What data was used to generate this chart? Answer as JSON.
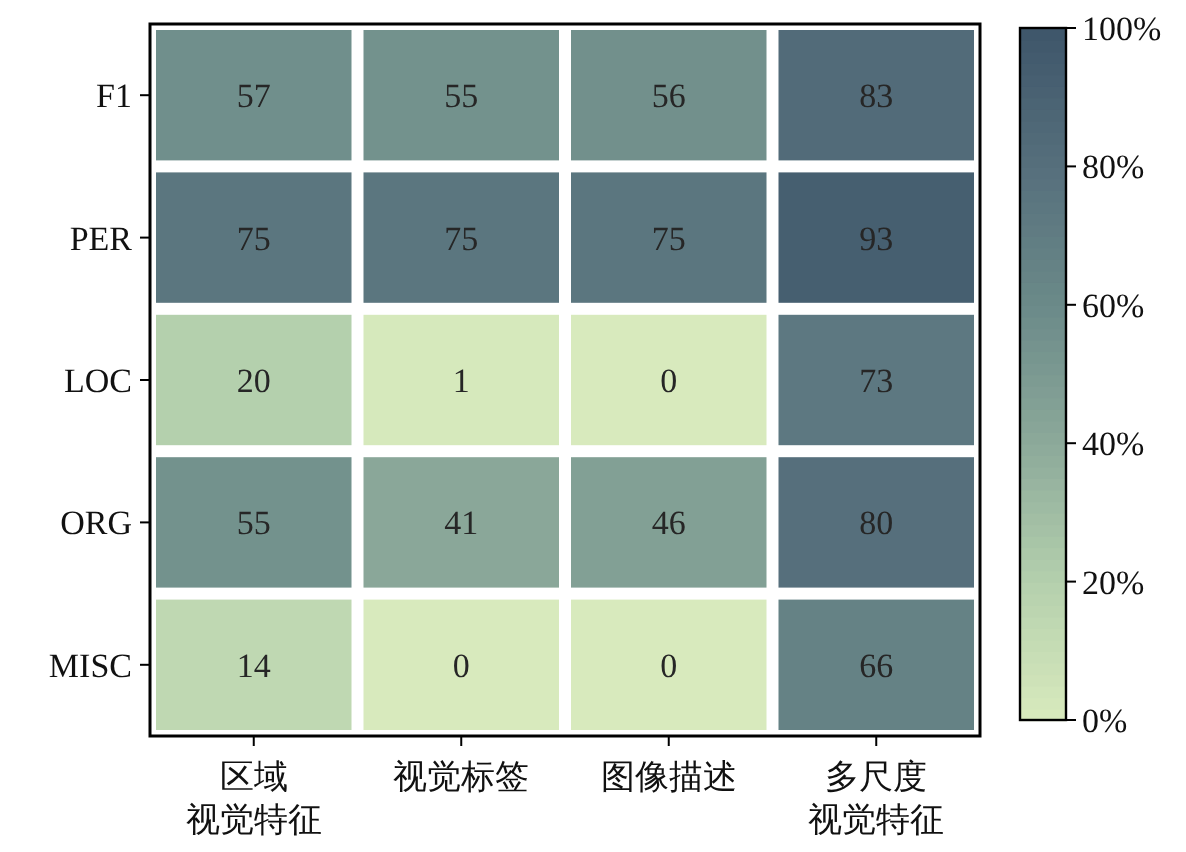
{
  "chart_data": {
    "type": "heatmap",
    "categories": [
      "区域视觉特征",
      "视觉标签",
      "图像描述",
      "多尺度视觉特征"
    ],
    "y_categories": [
      "F1",
      "PER",
      "LOC",
      "ORG",
      "MISC"
    ],
    "cells": [
      [
        57,
        55,
        56,
        83
      ],
      [
        75,
        75,
        75,
        93
      ],
      [
        20,
        1,
        0,
        73
      ],
      [
        55,
        41,
        46,
        80
      ],
      [
        14,
        0,
        0,
        66
      ]
    ],
    "data_labels": true,
    "clim": [
      0,
      100
    ],
    "cticks": [
      {
        "value": 0,
        "label": "0%"
      },
      {
        "value": 20,
        "label": "20%"
      },
      {
        "value": 40,
        "label": "40%"
      },
      {
        "value": 60,
        "label": "60%"
      },
      {
        "value": 80,
        "label": "80%"
      },
      {
        "value": 100,
        "label": "100%"
      }
    ]
  }
}
